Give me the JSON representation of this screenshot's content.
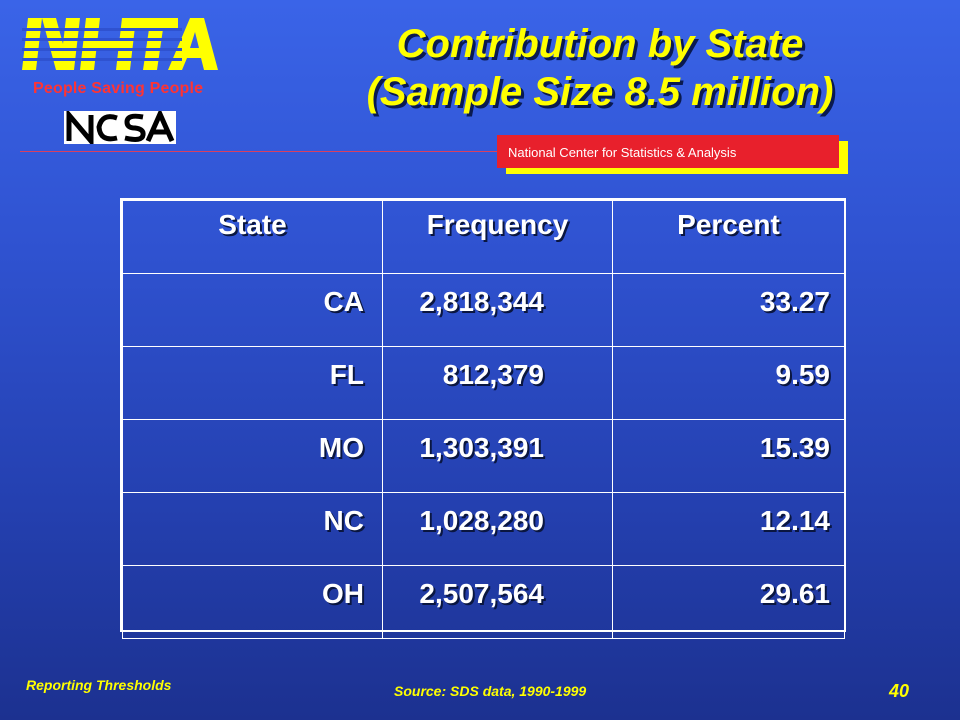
{
  "header": {
    "logo_text": "NHTSA",
    "tagline": "People Saving People",
    "ncsa_logo_text": "NCSA",
    "ncsa_banner": "National Center for Statistics & Analysis",
    "title_line1": "Contribution by State",
    "title_line2": "(Sample Size 8.5 million)"
  },
  "table": {
    "columns": [
      "State",
      "Frequency",
      "Percent"
    ],
    "rows": [
      {
        "state": "CA",
        "frequency": "2,818,344",
        "percent": "33.27"
      },
      {
        "state": "FL",
        "frequency": "812,379",
        "percent": "9.59"
      },
      {
        "state": "MO",
        "frequency": "1,303,391",
        "percent": "15.39"
      },
      {
        "state": "NC",
        "frequency": "1,028,280",
        "percent": "12.14"
      },
      {
        "state": "OH",
        "frequency": "2,507,564",
        "percent": "29.61"
      }
    ]
  },
  "footer": {
    "left": "Reporting Thresholds",
    "source": "Source: SDS data, 1990-1999",
    "page": "40"
  },
  "colors": {
    "title": "#ffff00",
    "tagline": "#ff3333",
    "banner": "#e8202c",
    "background": "#2f52d0"
  }
}
